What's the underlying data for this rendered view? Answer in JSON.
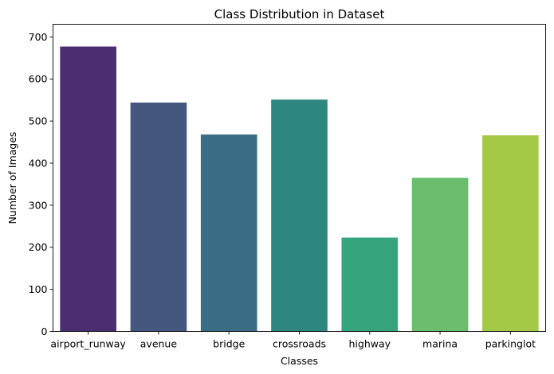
{
  "chart_data": {
    "type": "bar",
    "title": "Class Distribution in Dataset",
    "xlabel": "Classes",
    "ylabel": "Number of Images",
    "categories": [
      "airport_runway",
      "avenue",
      "bridge",
      "crossroads",
      "highway",
      "marina",
      "parkinglot"
    ],
    "values": [
      677,
      544,
      468,
      551,
      223,
      365,
      466
    ],
    "ylim": [
      0,
      730
    ],
    "yticks": [
      0,
      100,
      200,
      300,
      400,
      500,
      600,
      700
    ],
    "colors": [
      "#4b2e72",
      "#46577f",
      "#3a6e84",
      "#2d8680",
      "#36a47c",
      "#6abd6c",
      "#a3c947"
    ],
    "grid": false,
    "legend": "none"
  }
}
